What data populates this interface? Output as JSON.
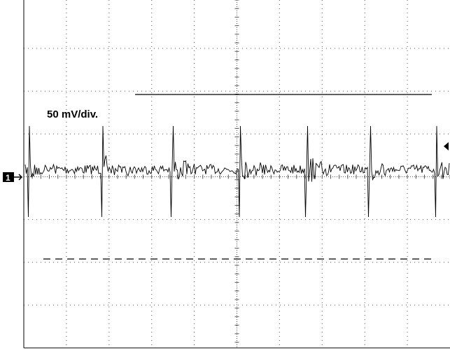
{
  "screen": {
    "scale_label": "50 mV/div.",
    "channel_marker": "1"
  }
}
